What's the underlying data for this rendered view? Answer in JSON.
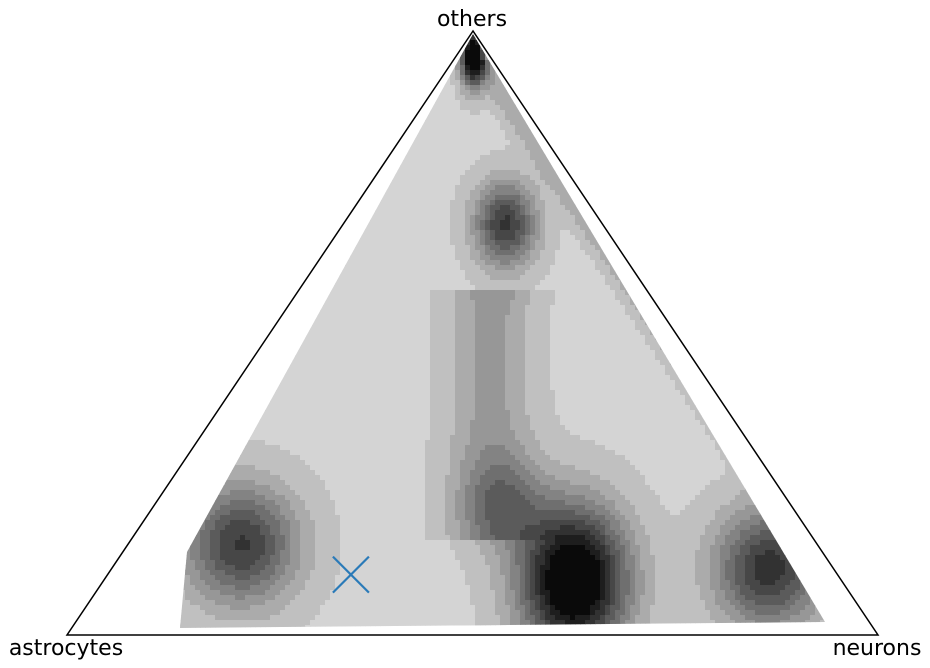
{
  "chart_data": {
    "type": "ternary_density",
    "corners": {
      "top": "others",
      "left": "astrocytes",
      "right": "neurons"
    },
    "colors": {
      "outline": "#000000",
      "marker": "#2a7ab8",
      "density_low": "#e6e6e6",
      "density_high": "#0a0a0a"
    },
    "density_peaks": [
      {
        "astrocytes": 0.33,
        "neurons": 0.58,
        "others": 0.09,
        "level": 1.0
      },
      {
        "astrocytes": 0.71,
        "neurons": 0.14,
        "others": 0.15,
        "level": 0.62
      },
      {
        "astrocytes": 0.08,
        "neurons": 0.81,
        "others": 0.11,
        "level": 0.66
      },
      {
        "astrocytes": 0.35,
        "neurons": 0.43,
        "others": 0.22,
        "level": 0.26
      },
      {
        "astrocytes": 0.12,
        "neurons": 0.2,
        "others": 0.68,
        "level": 0.63
      },
      {
        "astrocytes": 0.02,
        "neurons": 0.02,
        "others": 0.96,
        "level": 0.95
      }
    ],
    "levels": 12,
    "marker": {
      "symbol": "x",
      "astrocytes": 0.6,
      "neurons": 0.3,
      "others": 0.1
    }
  }
}
